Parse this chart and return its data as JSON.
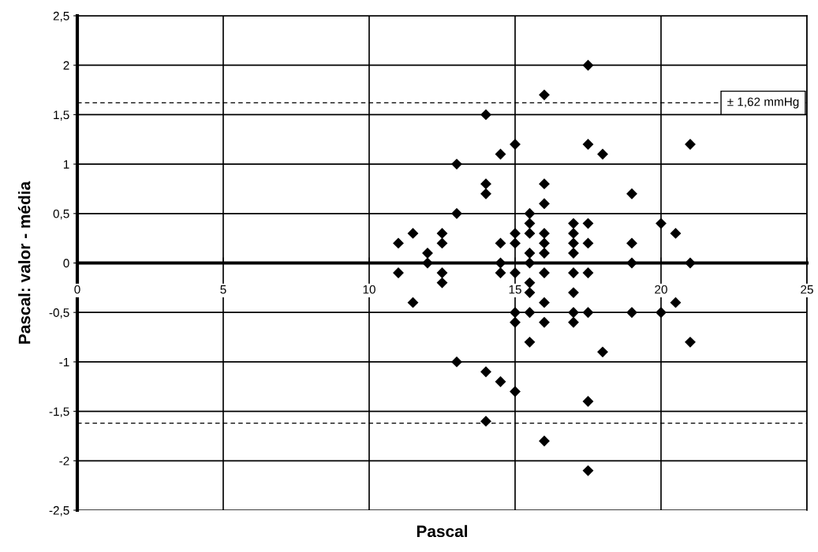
{
  "chart_data": {
    "type": "scatter",
    "xlabel": "Pascal",
    "ylabel": "Pascal: valor - média",
    "x": [
      11,
      11,
      11.5,
      11.5,
      12,
      12,
      12.5,
      12.5,
      12.5,
      12.5,
      13,
      13,
      13,
      14,
      14,
      14,
      14,
      14,
      14.5,
      14.5,
      14.5,
      14.5,
      14.5,
      15,
      15,
      15,
      15,
      15,
      15,
      15,
      15.5,
      15.5,
      15.5,
      15.5,
      15.5,
      15.5,
      15.5,
      15.5,
      15.5,
      16,
      16,
      16,
      16,
      16,
      16,
      16,
      16,
      16,
      16,
      17,
      17,
      17,
      17,
      17,
      17,
      17,
      17,
      17.5,
      17.5,
      17.5,
      17.5,
      17.5,
      17.5,
      17.5,
      17.5,
      18,
      18,
      19,
      19,
      19,
      19,
      20,
      20,
      20.5,
      20.5,
      21,
      21,
      21
    ],
    "series": [
      {
        "color": "#000000",
        "values": [
          0.2,
          -0.1,
          0.3,
          -0.4,
          0.1,
          0,
          0.3,
          0.2,
          -0.1,
          -0.2,
          1.0,
          0.5,
          -1.0,
          1.5,
          0.8,
          0.7,
          -1.1,
          -1.6,
          1.1,
          0.2,
          0,
          -0.1,
          -1.2,
          1.2,
          0.3,
          0.2,
          -0.1,
          -0.5,
          -0.6,
          -1.3,
          0.5,
          0.4,
          0.3,
          0.1,
          0,
          -0.2,
          -0.3,
          -0.5,
          -0.8,
          1.7,
          0.8,
          0.6,
          0.3,
          0.2,
          0.1,
          -0.1,
          -0.4,
          -0.6,
          -1.8,
          0.4,
          0.3,
          0.2,
          0.1,
          -0.1,
          -0.3,
          -0.5,
          -0.6,
          2.0,
          1.2,
          0.4,
          0.2,
          -0.1,
          -0.5,
          -1.4,
          -2.1,
          1.1,
          -0.9,
          0.7,
          0.2,
          0,
          -0.5,
          0.4,
          -0.5,
          0.3,
          -0.4,
          1.2,
          0,
          -0.8
        ]
      }
    ],
    "xlim": [
      0,
      25
    ],
    "xticks": [
      0,
      5,
      10,
      15,
      20,
      25
    ],
    "ylim": [
      -2.5,
      2.5
    ],
    "yticks": [
      {
        "value": -2.5,
        "label": "-2,5"
      },
      -2,
      {
        "value": -1.5,
        "label": "-1,5"
      },
      -1,
      {
        "value": -0.5,
        "label": "-0,5"
      },
      0,
      {
        "value": 0.5,
        "label": "0,5"
      },
      1,
      {
        "value": 1.5,
        "label": "1,5"
      },
      2,
      {
        "value": 2.5,
        "label": "2,5"
      }
    ],
    "ref_lines": [
      {
        "axis": "y",
        "value": 1.62,
        "label": "± 1,62 mmHg",
        "color": "#000000",
        "line_style": "dashed"
      },
      {
        "axis": "y",
        "value": -1.62,
        "color": "#000000",
        "line_style": "dashed"
      }
    ],
    "grid": true,
    "marker": "diamond",
    "legend": false
  }
}
